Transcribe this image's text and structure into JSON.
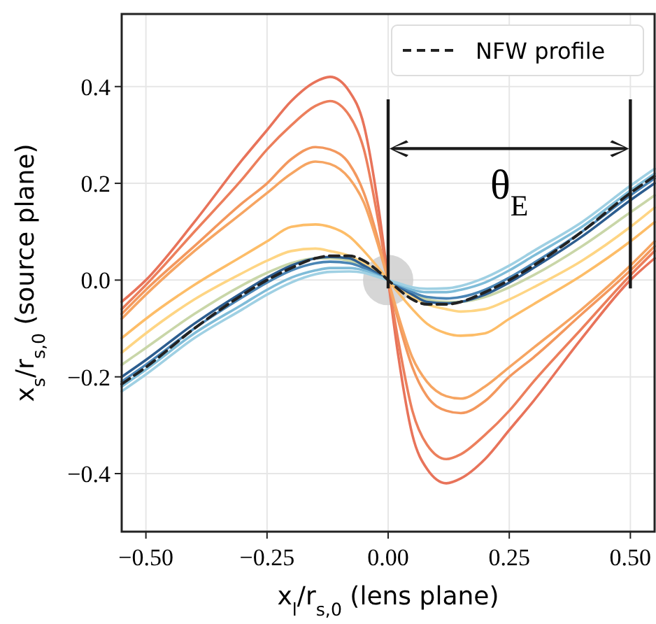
{
  "chart_data": {
    "type": "line",
    "xlabel": "x$_{l}$/r$_{s,0}$ (lens plane)",
    "ylabel": "x$_{s}$/r$_{s,0}$ (source plane)",
    "x": [
      -0.55,
      -0.5,
      -0.4,
      -0.3,
      -0.25,
      -0.2,
      -0.15,
      -0.12,
      -0.08,
      -0.05,
      -0.02,
      0,
      0.02,
      0.05,
      0.08,
      0.12,
      0.15,
      0.2,
      0.25,
      0.3,
      0.4,
      0.5,
      0.55
    ],
    "xlim": [
      -0.55,
      0.55
    ],
    "ylim": [
      -0.52,
      0.55
    ],
    "xticks": [
      {
        "value": -0.5,
        "label": "−0.50"
      },
      {
        "value": -0.25,
        "label": "−0.25"
      },
      {
        "value": 0,
        "label": "0.00"
      },
      {
        "value": 0.25,
        "label": "0.25"
      },
      {
        "value": 0.5,
        "label": "0.50"
      }
    ],
    "yticks": [
      {
        "value": -0.4,
        "label": "−0.4"
      },
      {
        "value": -0.2,
        "label": "−0.2"
      },
      {
        "value": 0,
        "label": "0.0"
      },
      {
        "value": 0.2,
        "label": "0.2"
      },
      {
        "value": 0.4,
        "label": "0.4"
      }
    ],
    "grid": true,
    "legend": "top right",
    "marker": "none",
    "series": [
      {
        "color": "#e8735a",
        "values": [
          -0.045,
          0.0,
          0.12,
          0.25,
          0.31,
          0.37,
          0.41,
          0.42,
          0.39,
          0.32,
          0.15,
          0,
          -0.15,
          -0.32,
          -0.39,
          -0.42,
          -0.41,
          -0.37,
          -0.31,
          -0.25,
          -0.12,
          0.0,
          0.045
        ]
      },
      {
        "color": "#ec7f5c",
        "values": [
          -0.06,
          -0.01,
          0.1,
          0.21,
          0.27,
          0.32,
          0.36,
          0.37,
          0.34,
          0.27,
          0.12,
          0,
          -0.12,
          -0.27,
          -0.34,
          -0.37,
          -0.36,
          -0.32,
          -0.27,
          -0.21,
          -0.1,
          0.01,
          0.06
        ]
      },
      {
        "color": "#f3985e",
        "values": [
          -0.07,
          -0.02,
          0.07,
          0.16,
          0.2,
          0.25,
          0.275,
          0.27,
          0.24,
          0.18,
          0.08,
          0,
          -0.08,
          -0.18,
          -0.24,
          -0.27,
          -0.275,
          -0.25,
          -0.2,
          -0.16,
          -0.07,
          0.02,
          0.07
        ]
      },
      {
        "color": "#f6a562",
        "values": [
          -0.08,
          -0.03,
          0.06,
          0.14,
          0.18,
          0.22,
          0.245,
          0.24,
          0.21,
          0.16,
          0.07,
          0,
          -0.07,
          -0.16,
          -0.21,
          -0.24,
          -0.245,
          -0.22,
          -0.18,
          -0.14,
          -0.06,
          0.03,
          0.08
        ]
      },
      {
        "color": "#fdbd68",
        "values": [
          -0.12,
          -0.08,
          -0.01,
          0.05,
          0.08,
          0.11,
          0.115,
          0.11,
          0.09,
          0.06,
          0.025,
          0,
          -0.025,
          -0.06,
          -0.09,
          -0.11,
          -0.115,
          -0.11,
          -0.08,
          -0.05,
          0.01,
          0.08,
          0.12
        ]
      },
      {
        "color": "#fed584",
        "values": [
          -0.15,
          -0.11,
          -0.04,
          0.015,
          0.04,
          0.06,
          0.065,
          0.06,
          0.05,
          0.035,
          0.015,
          0,
          -0.015,
          -0.035,
          -0.05,
          -0.06,
          -0.065,
          -0.06,
          -0.04,
          -0.015,
          0.04,
          0.11,
          0.15
        ]
      },
      {
        "color": "#c9d6a8",
        "values": [
          -0.175,
          -0.14,
          -0.07,
          -0.01,
          0.015,
          0.035,
          0.045,
          0.045,
          0.04,
          0.025,
          0.01,
          0,
          -0.01,
          -0.025,
          -0.04,
          -0.045,
          -0.045,
          -0.035,
          -0.015,
          0.01,
          0.07,
          0.14,
          0.175
        ]
      },
      {
        "color": "#2c5d8f",
        "values": [
          -0.2,
          -0.165,
          -0.09,
          -0.025,
          0.005,
          0.03,
          0.045,
          0.048,
          0.045,
          0.03,
          0.012,
          0,
          -0.012,
          -0.03,
          -0.045,
          -0.048,
          -0.045,
          -0.03,
          -0.005,
          0.025,
          0.09,
          0.165,
          0.2
        ]
      },
      {
        "color": "#4a85b5",
        "values": [
          -0.21,
          -0.175,
          -0.1,
          -0.035,
          -0.005,
          0.02,
          0.035,
          0.038,
          0.035,
          0.025,
          0.01,
          0,
          -0.01,
          -0.025,
          -0.035,
          -0.038,
          -0.035,
          -0.02,
          0.005,
          0.035,
          0.1,
          0.175,
          0.21
        ]
      },
      {
        "color": "#7fbcd8",
        "values": [
          -0.22,
          -0.185,
          -0.11,
          -0.05,
          -0.02,
          0.005,
          0.02,
          0.025,
          0.025,
          0.02,
          0.008,
          0,
          -0.008,
          -0.02,
          -0.025,
          -0.025,
          -0.02,
          -0.005,
          0.02,
          0.05,
          0.11,
          0.185,
          0.22
        ]
      },
      {
        "color": "#9fd0e3",
        "values": [
          -0.23,
          -0.195,
          -0.12,
          -0.06,
          -0.03,
          -0.005,
          0.012,
          0.017,
          0.018,
          0.015,
          0.006,
          0,
          -0.006,
          -0.015,
          -0.018,
          -0.017,
          -0.012,
          0.005,
          0.03,
          0.06,
          0.12,
          0.195,
          0.23
        ]
      },
      {
        "name": "NFW profile",
        "color": "#222222",
        "line_style": "dashed",
        "values": [
          -0.215,
          -0.18,
          -0.1,
          -0.03,
          0.0,
          0.025,
          0.045,
          0.05,
          0.05,
          0.04,
          0.018,
          0,
          -0.018,
          -0.04,
          -0.05,
          -0.05,
          -0.045,
          -0.025,
          0.0,
          0.03,
          0.1,
          0.18,
          0.215
        ]
      }
    ],
    "ref_lines": [
      {
        "axis": "x",
        "value": 0,
        "color": "#1a1a1a"
      },
      {
        "axis": "x",
        "value": 0.5,
        "color": "#1a1a1a"
      }
    ],
    "annotations": [
      "θ$_{E}$"
    ]
  }
}
